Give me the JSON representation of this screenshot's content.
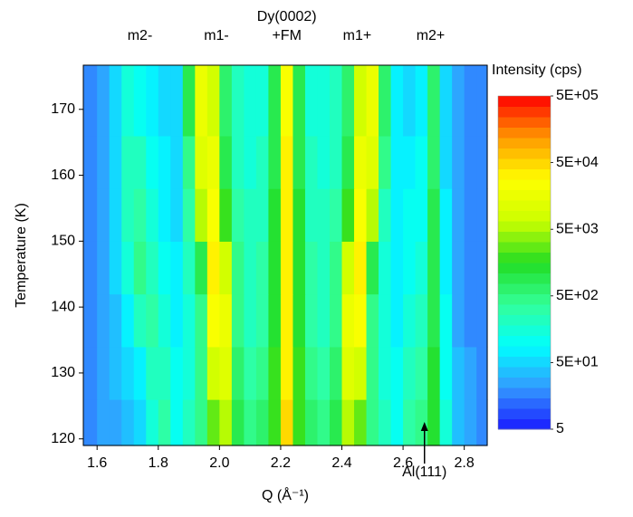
{
  "chart_data": {
    "type": "contour",
    "x_label": "Q (Å⁻¹)",
    "y_label": "Temperature (K)",
    "colorbar_label": "Intensity (cps)",
    "xlim": [
      1.555,
      2.875
    ],
    "ylim": [
      119,
      176.7
    ],
    "xticks": [
      1.6,
      1.8,
      {
        "value": 2,
        "label": "2.0"
      },
      2.2,
      2.4,
      2.6,
      2.8
    ],
    "yticks": [
      120,
      130,
      140,
      150,
      160,
      170
    ],
    "zscale": "log",
    "zlim": [
      5,
      500000
    ],
    "zticks": [
      {
        "value": 5,
        "label": "5"
      },
      {
        "value": 50,
        "label": "5E+01"
      },
      {
        "value": 500,
        "label": "5E+02"
      },
      {
        "value": 5000,
        "label": "5E+03"
      },
      {
        "value": 50000,
        "label": "5E+04"
      },
      {
        "value": 500000,
        "label": "5E+05"
      }
    ],
    "colormap": [
      "#1a1aff",
      "#3399ff",
      "#00ffff",
      "#33ff99",
      "#22dd22",
      "#ccff00",
      "#ffff00",
      "#ff9900",
      "#ff0000"
    ],
    "peak_labels": [
      {
        "x": 1.74,
        "lines": [
          "m2-"
        ]
      },
      {
        "x": 1.99,
        "lines": [
          "m1-"
        ]
      },
      {
        "x": 2.22,
        "lines": [
          "Dy(0002)",
          "+FM"
        ]
      },
      {
        "x": 2.45,
        "lines": [
          "m1+"
        ]
      },
      {
        "x": 2.69,
        "lines": [
          "m2+"
        ]
      }
    ],
    "arrow_annotation": {
      "x": 2.67,
      "text": "Al(111)"
    },
    "x": [
      1.58,
      1.62,
      1.66,
      1.7,
      1.74,
      1.78,
      1.82,
      1.86,
      1.9,
      1.94,
      1.98,
      2.02,
      2.06,
      2.1,
      2.14,
      2.18,
      2.22,
      2.26,
      2.3,
      2.34,
      2.38,
      2.42,
      2.46,
      2.5,
      2.54,
      2.58,
      2.62,
      2.66,
      2.7,
      2.74,
      2.78,
      2.82,
      2.86
    ],
    "y": [
      122,
      130,
      138,
      146,
      154,
      162,
      170
    ],
    "z": [
      [
        20,
        25,
        30,
        40,
        60,
        150,
        300,
        120,
        200,
        500,
        3000,
        5000,
        800,
        400,
        600,
        2000,
        50000,
        2000,
        600,
        400,
        800,
        5000,
        3000,
        500,
        200,
        120,
        300,
        400,
        1500,
        150,
        40,
        25,
        20
      ],
      [
        20,
        25,
        35,
        50,
        80,
        200,
        250,
        100,
        150,
        400,
        8000,
        10000,
        700,
        300,
        400,
        2000,
        40000,
        2000,
        400,
        300,
        700,
        10000,
        8000,
        400,
        150,
        100,
        250,
        300,
        1200,
        120,
        35,
        25,
        20
      ],
      [
        20,
        30,
        40,
        80,
        200,
        300,
        150,
        80,
        150,
        500,
        20000,
        15000,
        500,
        250,
        300,
        1500,
        35000,
        1500,
        300,
        250,
        500,
        15000,
        20000,
        500,
        150,
        80,
        150,
        200,
        1000,
        100,
        30,
        20,
        18
      ],
      [
        20,
        30,
        50,
        150,
        400,
        250,
        100,
        70,
        200,
        1000,
        30000,
        8000,
        400,
        250,
        300,
        1500,
        35000,
        1500,
        300,
        250,
        400,
        8000,
        30000,
        1000,
        150,
        80,
        120,
        150,
        900,
        80,
        30,
        20,
        18
      ],
      [
        20,
        30,
        60,
        200,
        300,
        150,
        80,
        60,
        300,
        5000,
        25000,
        2000,
        300,
        200,
        250,
        1200,
        30000,
        1200,
        250,
        200,
        300,
        2000,
        25000,
        5000,
        200,
        80,
        100,
        120,
        800,
        70,
        30,
        20,
        18
      ],
      [
        20,
        25,
        60,
        200,
        200,
        100,
        70,
        60,
        500,
        10000,
        15000,
        1000,
        250,
        150,
        200,
        1000,
        30000,
        1000,
        200,
        150,
        250,
        1000,
        15000,
        10000,
        400,
        80,
        80,
        100,
        700,
        60,
        25,
        20,
        18
      ],
      [
        20,
        25,
        50,
        150,
        120,
        80,
        60,
        60,
        800,
        15000,
        8000,
        600,
        200,
        150,
        150,
        800,
        25000,
        800,
        150,
        150,
        200,
        600,
        8000,
        15000,
        700,
        80,
        60,
        80,
        600,
        50,
        25,
        20,
        18
      ]
    ]
  }
}
